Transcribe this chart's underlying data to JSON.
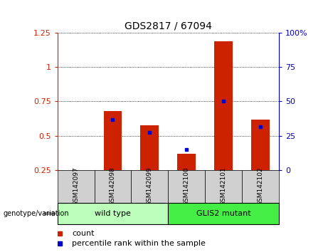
{
  "title": "GDS2817 / 67094",
  "samples": [
    "GSM142097",
    "GSM142098",
    "GSM142099",
    "GSM142100",
    "GSM142101",
    "GSM142102"
  ],
  "red_bars": [
    0.0,
    0.68,
    0.575,
    0.37,
    1.19,
    0.62
  ],
  "blue_dots": [
    null,
    0.62,
    0.525,
    0.4,
    0.755,
    0.565
  ],
  "ylim_left": [
    0.25,
    1.25
  ],
  "yticks_left": [
    0.25,
    0.5,
    0.75,
    1.0,
    1.25
  ],
  "ytick_labels_left": [
    "0.25",
    "0.5",
    "0.75",
    "1",
    "1.25"
  ],
  "ylim_right": [
    0,
    100
  ],
  "yticks_right": [
    0,
    25,
    50,
    75,
    100
  ],
  "ytick_labels_right": [
    "0",
    "25",
    "50",
    "75",
    "100%"
  ],
  "left_tick_color": "#cc2200",
  "right_tick_color": "#0000cc",
  "groups": [
    {
      "label": "wild type",
      "indices": [
        0,
        1,
        2
      ]
    },
    {
      "label": "GLIS2 mutant",
      "indices": [
        3,
        4,
        5
      ]
    }
  ],
  "group_colors": [
    "#bbffbb",
    "#44ee44"
  ],
  "group_label": "genotype/variation",
  "bar_color": "#cc2200",
  "dot_color": "#0000cc",
  "bar_width": 0.5,
  "legend_count_label": "count",
  "legend_pct_label": "percentile rank within the sample"
}
